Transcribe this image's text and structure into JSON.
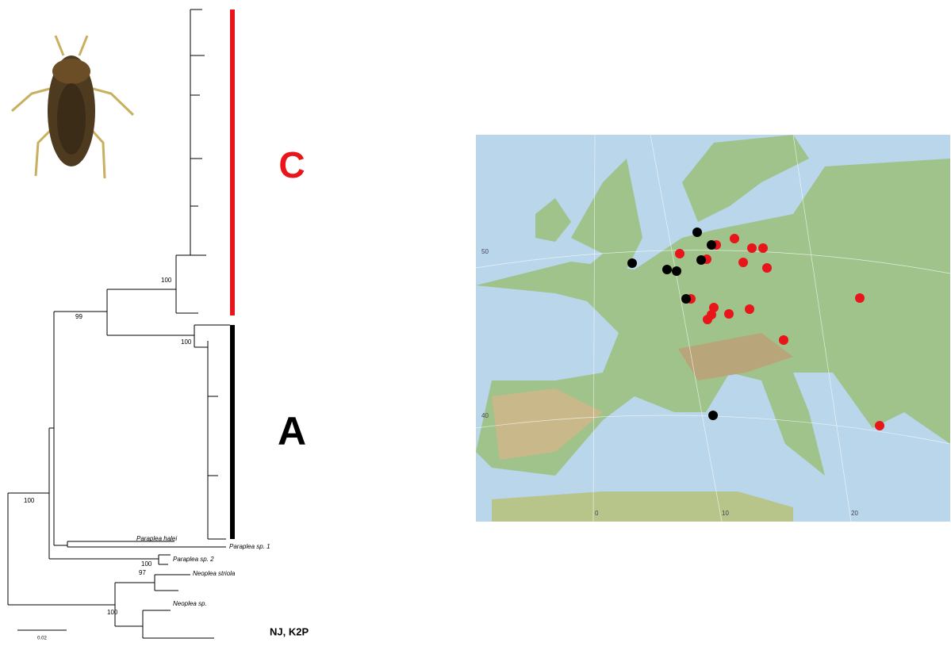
{
  "tree": {
    "clades": [
      {
        "label": "C"
      },
      {
        "label": "A"
      }
    ],
    "support": [
      100,
      99,
      100,
      100,
      100,
      97,
      100
    ],
    "taxa": [
      "Paraplea halei",
      "Paraplea sp. 1",
      "Paraplea sp. 2",
      "Neoplea striola",
      "Neoplea sp."
    ],
    "scale": "0.02",
    "method": "NJ, K2P"
  },
  "map": {
    "latitude_labels": [
      "50",
      "40"
    ],
    "longitude_labels": [
      "0",
      "10",
      "20"
    ]
  }
}
